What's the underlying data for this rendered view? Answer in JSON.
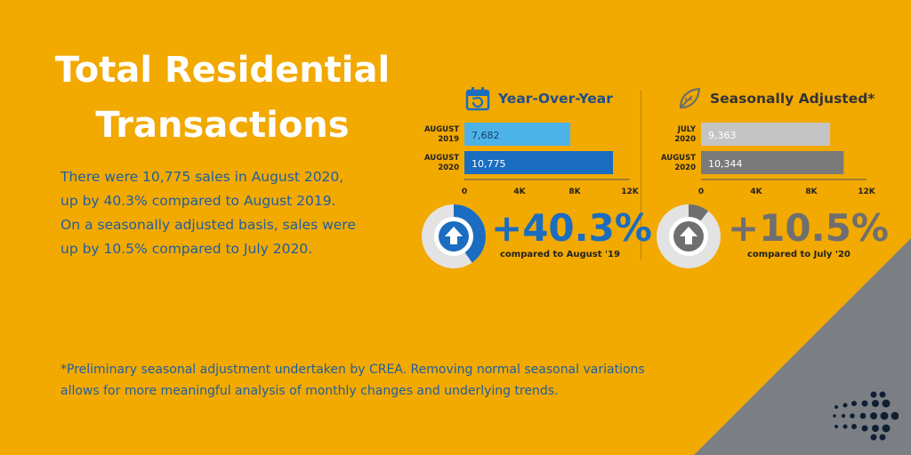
{
  "title": [
    "Total Residential",
    "Transactions"
  ],
  "body_lines": [
    "There were 10,775 sales in August 2020,",
    "up by 40.3% compared to August 2019.",
    "On a seasonally adjusted basis, sales were",
    "up by 10.5% compared to July 2020."
  ],
  "footnote_lines": [
    "*Preliminary seasonal adjustment undertaken by CREA. Removing normal seasonal variations",
    "allows for more meaningful analysis of monthly changes and underlying trends."
  ],
  "colors": {
    "background": "#F2A900",
    "yoy_bar_2019": "#4DB2E8",
    "yoy_bar_2020": "#1A6DC0",
    "sa_bar_july": "#C4C4C4",
    "sa_bar_aug": "#7A7A7A",
    "yoy_accent": "#1A6DC0",
    "sa_accent": "#6F6F6F",
    "corner": "#7B7F84"
  },
  "icons": {
    "yoy": "calendar-refresh-icon",
    "sa": "leaf-icon",
    "up": "arrow-up-icon",
    "logo": "dot-grid-logo"
  },
  "chart_data": [
    {
      "type": "bar",
      "orientation": "horizontal",
      "title": "Year-Over-Year",
      "categories": [
        [
          "AUGUST",
          "2019"
        ],
        [
          "AUGUST",
          "2020"
        ]
      ],
      "values": [
        7682,
        10775
      ],
      "value_labels": [
        "7,682",
        "10,775"
      ],
      "xlim": [
        0,
        12000
      ],
      "xticks": [
        0,
        4000,
        8000,
        12000
      ],
      "xtick_labels": [
        "0",
        "4K",
        "8K",
        "12K"
      ],
      "change": {
        "value": "+40.3%",
        "percent": 40.3,
        "caption": "compared to August '19"
      }
    },
    {
      "type": "bar",
      "orientation": "horizontal",
      "title": "Seasonally Adjusted*",
      "categories": [
        [
          "JULY",
          "2020"
        ],
        [
          "AUGUST",
          "2020"
        ]
      ],
      "values": [
        9363,
        10344
      ],
      "value_labels": [
        "9,363",
        "10,344"
      ],
      "xlim": [
        0,
        12000
      ],
      "xticks": [
        0,
        4000,
        8000,
        12000
      ],
      "xtick_labels": [
        "0",
        "4K",
        "8K",
        "12K"
      ],
      "change": {
        "value": "+10.5%",
        "percent": 10.5,
        "caption": "compared to July '20"
      }
    }
  ]
}
